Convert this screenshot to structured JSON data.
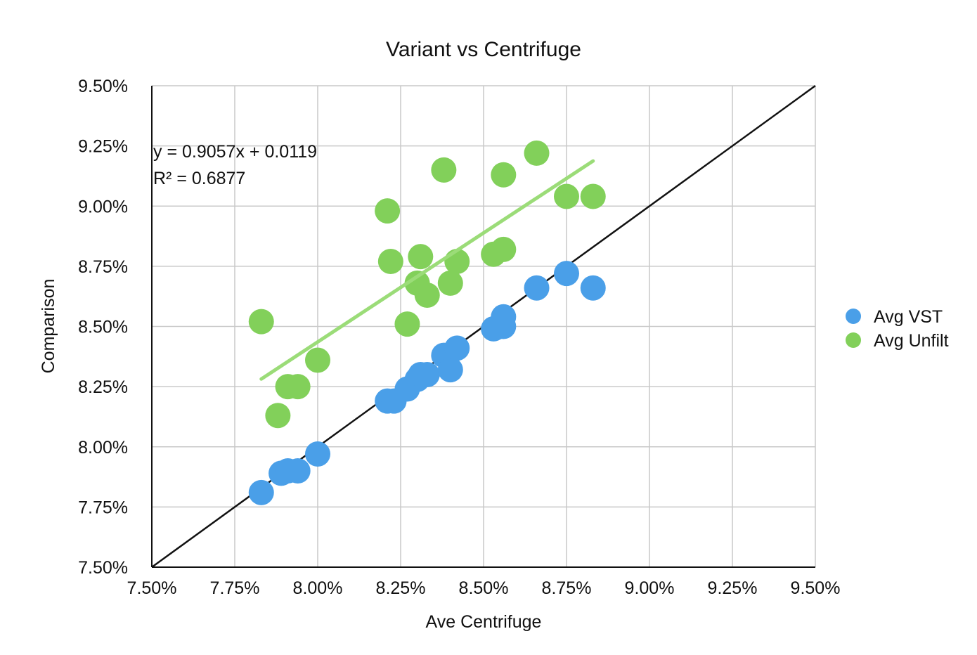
{
  "chart_data": {
    "type": "scatter",
    "title": "Variant vs Centrifuge",
    "xlabel": "Ave Centrifuge",
    "ylabel": "Comparison",
    "xlim": [
      7.5,
      9.5
    ],
    "ylim": [
      7.5,
      9.5
    ],
    "x_ticks": [
      "7.50%",
      "7.75%",
      "8.00%",
      "8.25%",
      "8.50%",
      "8.75%",
      "9.00%",
      "9.25%",
      "9.50%"
    ],
    "y_ticks": [
      "7.50%",
      "7.75%",
      "8.00%",
      "8.25%",
      "8.50%",
      "8.75%",
      "9.00%",
      "9.25%",
      "9.50%"
    ],
    "grid": true,
    "legend_position": "right",
    "series": [
      {
        "name": "Avg VST",
        "color": "#4a9fe8",
        "points": [
          {
            "x": 7.83,
            "y": 7.81
          },
          {
            "x": 7.89,
            "y": 7.89
          },
          {
            "x": 7.91,
            "y": 7.9
          },
          {
            "x": 7.94,
            "y": 7.9
          },
          {
            "x": 8.0,
            "y": 7.97
          },
          {
            "x": 8.21,
            "y": 8.19
          },
          {
            "x": 8.23,
            "y": 8.19
          },
          {
            "x": 8.27,
            "y": 8.24
          },
          {
            "x": 8.3,
            "y": 8.28
          },
          {
            "x": 8.31,
            "y": 8.3
          },
          {
            "x": 8.33,
            "y": 8.3
          },
          {
            "x": 8.38,
            "y": 8.38
          },
          {
            "x": 8.4,
            "y": 8.32
          },
          {
            "x": 8.42,
            "y": 8.41
          },
          {
            "x": 8.53,
            "y": 8.49
          },
          {
            "x": 8.55,
            "y": 8.5
          },
          {
            "x": 8.56,
            "y": 8.5
          },
          {
            "x": 8.56,
            "y": 8.54
          },
          {
            "x": 8.66,
            "y": 8.66
          },
          {
            "x": 8.75,
            "y": 8.72
          },
          {
            "x": 8.83,
            "y": 8.66
          }
        ]
      },
      {
        "name": "Avg Unfilt",
        "color": "#82d05a",
        "points": [
          {
            "x": 7.83,
            "y": 8.52
          },
          {
            "x": 7.88,
            "y": 8.13
          },
          {
            "x": 7.91,
            "y": 8.25
          },
          {
            "x": 7.94,
            "y": 8.25
          },
          {
            "x": 8.0,
            "y": 8.36
          },
          {
            "x": 8.21,
            "y": 8.98
          },
          {
            "x": 8.22,
            "y": 8.77
          },
          {
            "x": 8.27,
            "y": 8.51
          },
          {
            "x": 8.3,
            "y": 8.68
          },
          {
            "x": 8.31,
            "y": 8.79
          },
          {
            "x": 8.33,
            "y": 8.63
          },
          {
            "x": 8.38,
            "y": 9.15
          },
          {
            "x": 8.4,
            "y": 8.68
          },
          {
            "x": 8.42,
            "y": 8.77
          },
          {
            "x": 8.53,
            "y": 8.8
          },
          {
            "x": 8.56,
            "y": 9.13
          },
          {
            "x": 8.56,
            "y": 8.82
          },
          {
            "x": 8.66,
            "y": 9.22
          },
          {
            "x": 8.75,
            "y": 9.04
          },
          {
            "x": 8.83,
            "y": 9.04
          }
        ]
      }
    ],
    "trendline": {
      "series": "Avg Unfilt",
      "color": "#9bdc78",
      "slope": 0.9057,
      "intercept": 0.0119,
      "x_range": [
        7.83,
        8.83
      ],
      "equation": "y = 0.9057x + 0.0119",
      "r_squared": "R² = 0.6877"
    },
    "reference_line": {
      "color": "#111111",
      "from": {
        "x": 7.5,
        "y": 7.5
      },
      "to": {
        "x": 9.5,
        "y": 9.5
      }
    }
  }
}
